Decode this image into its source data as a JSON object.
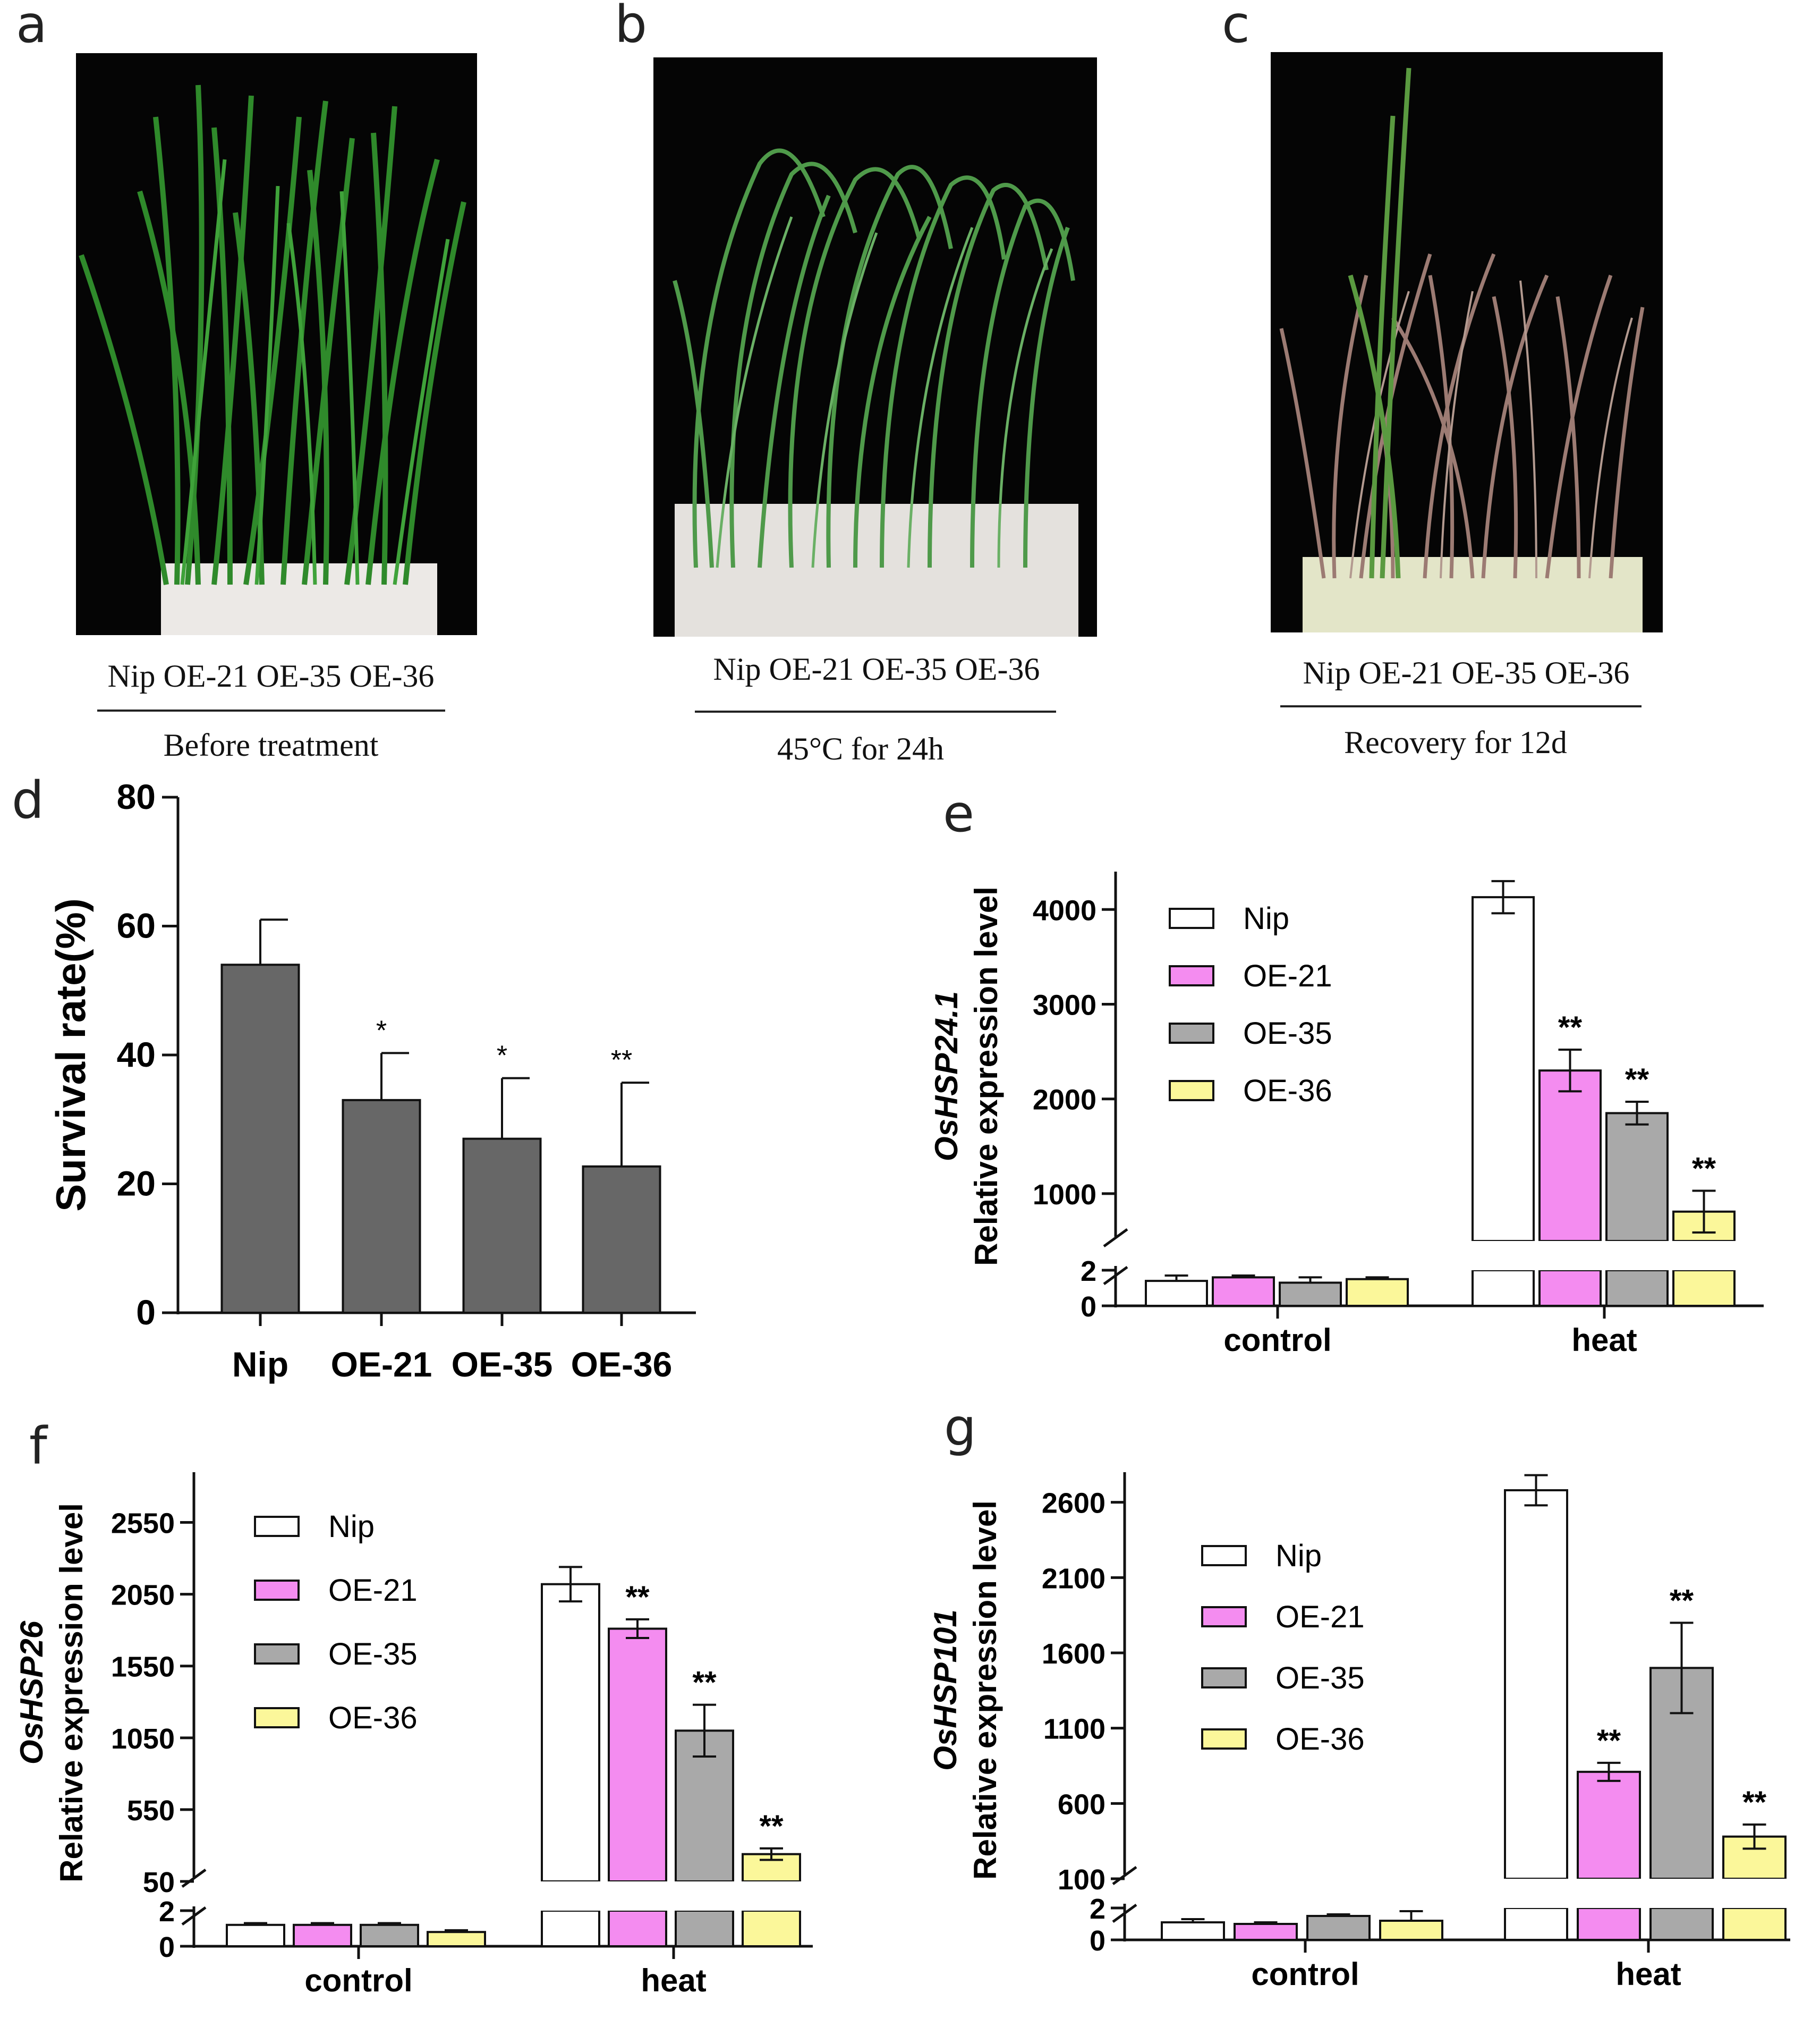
{
  "panels": {
    "a": {
      "letter": "a",
      "genotypes": "Nip OE-21 OE-35 OE-36",
      "condition": "Before treatment"
    },
    "b": {
      "letter": "b",
      "genotypes": "Nip OE-21 OE-35 OE-36",
      "condition": "45°C for 24h"
    },
    "c": {
      "letter": "c",
      "genotypes": "Nip OE-21 OE-35 OE-36",
      "condition": "Recovery for 12d"
    },
    "d": {
      "letter": "d"
    },
    "e": {
      "letter": "e"
    },
    "f": {
      "letter": "f"
    },
    "g": {
      "letter": "g"
    }
  },
  "colors": {
    "Nip": "#ffffff",
    "OE-21": "#f48cf0",
    "OE-35": "#a9a9a9",
    "OE-36": "#fbf79a",
    "survival_bar": "#676767"
  },
  "chart_data": [
    {
      "id": "d",
      "type": "bar",
      "title": "",
      "ylabel": "Survival rate(%)",
      "xlabel": "",
      "categories": [
        "Nip",
        "OE-21",
        "OE-35",
        "OE-36"
      ],
      "values": [
        54,
        33,
        27,
        22.7
      ],
      "errors": [
        7,
        7.3,
        9.4,
        13
      ],
      "significance": [
        "",
        "*",
        "*",
        "**"
      ],
      "ylim": [
        0,
        80
      ],
      "yticks": [
        0,
        20,
        40,
        60,
        80
      ]
    },
    {
      "id": "e",
      "type": "bar",
      "gene": "OsHSP24.1",
      "ylabel": "Relative expression level",
      "categories": [
        "control",
        "heat"
      ],
      "series": [
        {
          "name": "Nip",
          "values": [
            1.4,
            4130
          ],
          "errors": [
            0.3,
            170
          ]
        },
        {
          "name": "OE-21",
          "values": [
            1.6,
            2300
          ],
          "errors": [
            0.1,
            220
          ]
        },
        {
          "name": "OE-35",
          "values": [
            1.3,
            1850
          ],
          "errors": [
            0.3,
            120
          ]
        },
        {
          "name": "OE-36",
          "values": [
            1.5,
            810
          ],
          "errors": [
            0.1,
            220
          ]
        }
      ],
      "significance": {
        "control": [
          "",
          "",
          "",
          ""
        ],
        "heat": [
          "",
          "**",
          "**",
          "**"
        ]
      },
      "axis_break": {
        "lower": [
          0,
          2
        ],
        "upper": [
          500,
          4400
        ]
      },
      "yticks_lower": [
        0,
        2
      ],
      "yticks_upper": [
        1000,
        2000,
        3000,
        4000
      ]
    },
    {
      "id": "f",
      "type": "bar",
      "gene": "OsHSP26",
      "ylabel": "Relative expression level",
      "categories": [
        "control",
        "heat"
      ],
      "series": [
        {
          "name": "Nip",
          "values": [
            1.2,
            2120
          ],
          "errors": [
            0.1,
            120
          ]
        },
        {
          "name": "OE-21",
          "values": [
            1.2,
            1810
          ],
          "errors": [
            0.1,
            65
          ]
        },
        {
          "name": "OE-35",
          "values": [
            1.2,
            1100
          ],
          "errors": [
            0.1,
            180
          ]
        },
        {
          "name": "OE-36",
          "values": [
            0.8,
            240
          ],
          "errors": [
            0.1,
            40
          ]
        }
      ],
      "significance": {
        "control": [
          "",
          "",
          "",
          ""
        ],
        "heat": [
          "",
          "**",
          "**",
          "**"
        ]
      },
      "axis_break": {
        "lower": [
          0,
          2
        ],
        "upper": [
          50,
          2900
        ]
      },
      "yticks_lower": [
        0,
        2
      ],
      "yticks_upper": [
        50,
        550,
        1050,
        1550,
        2050,
        2550
      ]
    },
    {
      "id": "g",
      "type": "bar",
      "gene": "OsHSP101",
      "ylabel": "Relative expression level",
      "categories": [
        "control",
        "heat"
      ],
      "series": [
        {
          "name": "Nip",
          "values": [
            1.1,
            2680
          ],
          "errors": [
            0.2,
            100
          ]
        },
        {
          "name": "OE-21",
          "values": [
            1.0,
            810
          ],
          "errors": [
            0.1,
            60
          ]
        },
        {
          "name": "OE-35",
          "values": [
            1.5,
            1500
          ],
          "errors": [
            0.1,
            300
          ]
        },
        {
          "name": "OE-36",
          "values": [
            1.2,
            380
          ],
          "errors": [
            0.6,
            80
          ]
        }
      ],
      "significance": {
        "control": [
          "",
          "",
          "",
          ""
        ],
        "heat": [
          "",
          "**",
          "**",
          "**"
        ]
      },
      "axis_break": {
        "lower": [
          0,
          2
        ],
        "upper": [
          100,
          2800
        ]
      },
      "yticks_lower": [
        0,
        2
      ],
      "yticks_upper": [
        100,
        600,
        1100,
        1600,
        2100,
        2600
      ]
    }
  ]
}
